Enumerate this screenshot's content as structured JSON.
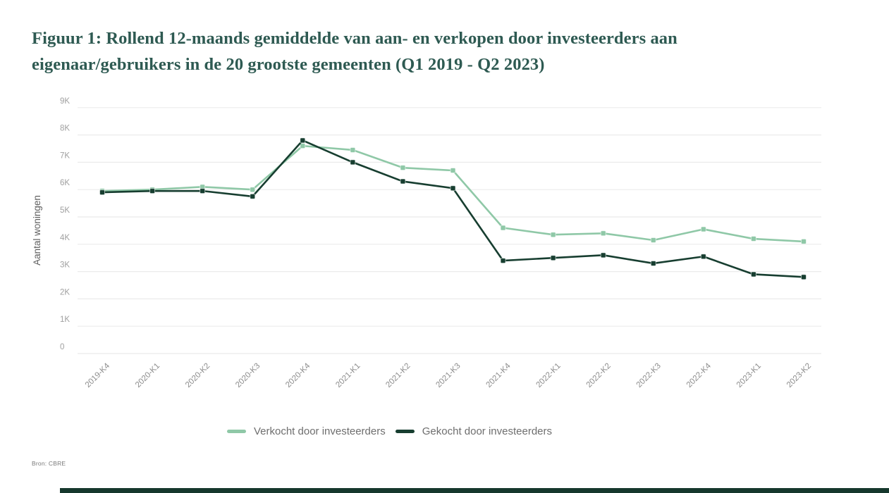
{
  "title": {
    "text": "Figuur 1: Rollend 12-maands gemiddelde van aan- en verkopen door investeerders aan eigenaar/gebruikers in de 20 grootste gemeenten (Q1 2019 - Q2 2023)"
  },
  "source": "Bron: CBRE",
  "colors": {
    "title": "#2e5a52",
    "grid": "#ebebeb",
    "y_tick": "#a0a0a0",
    "x_tick": "#8c8c8c",
    "axis_title": "#606060",
    "legend_text": "#6e6e6e",
    "footer_bar": "#16382d",
    "series_light": "#8fc8a7",
    "series_dark": "#173e30"
  },
  "chart_data": {
    "type": "line",
    "title": "Figuur 1: Rollend 12-maands gemiddelde van aan- en verkopen door investeerders aan eigenaar/gebruikers in de 20 grootste gemeenten (Q1 2019 - Q2 2023)",
    "xlabel": "",
    "ylabel": "Aantal woningen",
    "ylim": [
      0,
      9000
    ],
    "yticks": [
      "0",
      "1K",
      "2K",
      "3K",
      "4K",
      "5K",
      "6K",
      "7K",
      "8K",
      "9K"
    ],
    "grid": true,
    "legend_position": "bottom",
    "x": [
      "2019-K4",
      "2020-K1",
      "2020-K2",
      "2020-K3",
      "2020-K4",
      "2021-K1",
      "2021-K2",
      "2021-K3",
      "2021-K4",
      "2022-K1",
      "2022-K2",
      "2022-K3",
      "2022-K4",
      "2023-K1",
      "2023-K2"
    ],
    "series": [
      {
        "name": "Verkocht door investeerders",
        "color": "#8fc8a7",
        "values": [
          5950,
          6000,
          6100,
          6000,
          7600,
          7450,
          6800,
          6700,
          4600,
          4350,
          4400,
          4150,
          4550,
          4200,
          4100
        ]
      },
      {
        "name": "Gekocht door investeerders",
        "color": "#173e30",
        "values": [
          5900,
          5950,
          5950,
          5750,
          7800,
          7000,
          6300,
          6050,
          3400,
          3500,
          3600,
          3300,
          3550,
          2900,
          2800
        ]
      }
    ]
  }
}
